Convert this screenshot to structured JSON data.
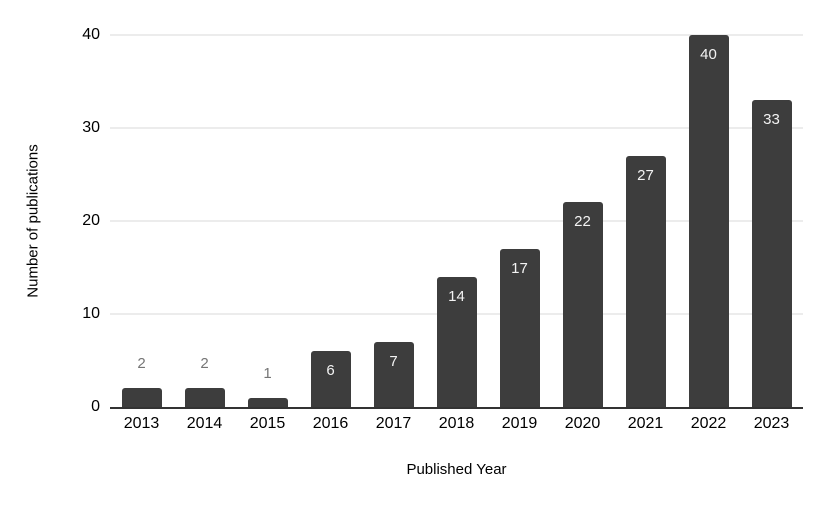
{
  "chart_data": {
    "type": "bar",
    "title": "",
    "xlabel": "Published Year",
    "ylabel": "Number of publications",
    "categories": [
      "2013",
      "2014",
      "2015",
      "2016",
      "2017",
      "2018",
      "2019",
      "2020",
      "2021",
      "2022",
      "2023"
    ],
    "values": [
      2,
      2,
      1,
      6,
      7,
      14,
      17,
      22,
      27,
      40,
      33
    ],
    "ylim": [
      0,
      40
    ],
    "yticks": [
      0,
      10,
      20,
      30,
      40
    ],
    "grid": true,
    "legend_position": "none",
    "value_label_placement": [
      "above",
      "above",
      "above",
      "inside",
      "inside",
      "inside",
      "inside",
      "inside",
      "inside",
      "inside",
      "inside"
    ],
    "colors": {
      "bar": "#3d3d3d",
      "gridline": "#d9d9d9",
      "axis_line": "#333333",
      "value_label_inside": "#f3f3f3",
      "value_label_outside": "#757575",
      "background": "#ffffff"
    }
  }
}
